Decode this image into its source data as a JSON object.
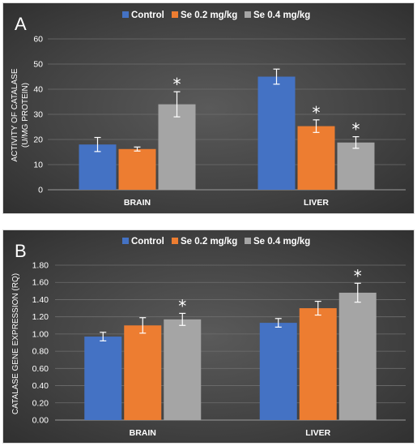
{
  "chart_data": [
    {
      "panel_label": "A",
      "type": "bar",
      "ylabel_lines": [
        "ACTIVITY OF CATALASE",
        "(U/MG PROTEIN)"
      ],
      "ylim": [
        0,
        60
      ],
      "yticks": [
        "0",
        "10",
        "20",
        "30",
        "40",
        "50",
        "60"
      ],
      "grid": true,
      "legend_position": "top-center",
      "categories": [
        "BRAIN",
        "LIVER"
      ],
      "series": [
        {
          "name": "Control",
          "color": "#4472c4",
          "values": [
            18,
            45
          ],
          "errors": [
            2.8,
            3
          ]
        },
        {
          "name": "Se 0.2 mg/kg",
          "color": "#ed7d31",
          "values": [
            16.2,
            25.3
          ],
          "errors": [
            0.8,
            2.5
          ]
        },
        {
          "name": "Se 0.4 mg/kg",
          "color": "#a5a5a5",
          "values": [
            34,
            18.8
          ],
          "errors": [
            5,
            2.3
          ]
        }
      ],
      "annotations": [
        {
          "category": 0,
          "series": 2,
          "text": "*"
        },
        {
          "category": 1,
          "series": 1,
          "text": "*"
        },
        {
          "category": 1,
          "series": 2,
          "text": "*"
        }
      ]
    },
    {
      "panel_label": "B",
      "type": "bar",
      "ylabel_lines": [
        "CATALASE GENE EXPRESSION (RQ)"
      ],
      "ylim": [
        0,
        1.8
      ],
      "yticks": [
        "0.00",
        "0.20",
        "0.40",
        "0.60",
        "0.80",
        "1.00",
        "1.20",
        "1.40",
        "1.60",
        "1.80"
      ],
      "grid": true,
      "legend_position": "top-center",
      "categories": [
        "BRAIN",
        "LIVER"
      ],
      "series": [
        {
          "name": "Control",
          "color": "#4472c4",
          "values": [
            0.97,
            1.13
          ],
          "errors": [
            0.05,
            0.05
          ]
        },
        {
          "name": "Se 0.2 mg/kg",
          "color": "#ed7d31",
          "values": [
            1.1,
            1.3
          ],
          "errors": [
            0.09,
            0.08
          ]
        },
        {
          "name": "Se 0.4 mg/kg",
          "color": "#a5a5a5",
          "values": [
            1.17,
            1.48
          ],
          "errors": [
            0.07,
            0.11
          ]
        }
      ],
      "annotations": [
        {
          "category": 0,
          "series": 2,
          "text": "*"
        },
        {
          "category": 1,
          "series": 2,
          "text": "*"
        }
      ]
    }
  ]
}
